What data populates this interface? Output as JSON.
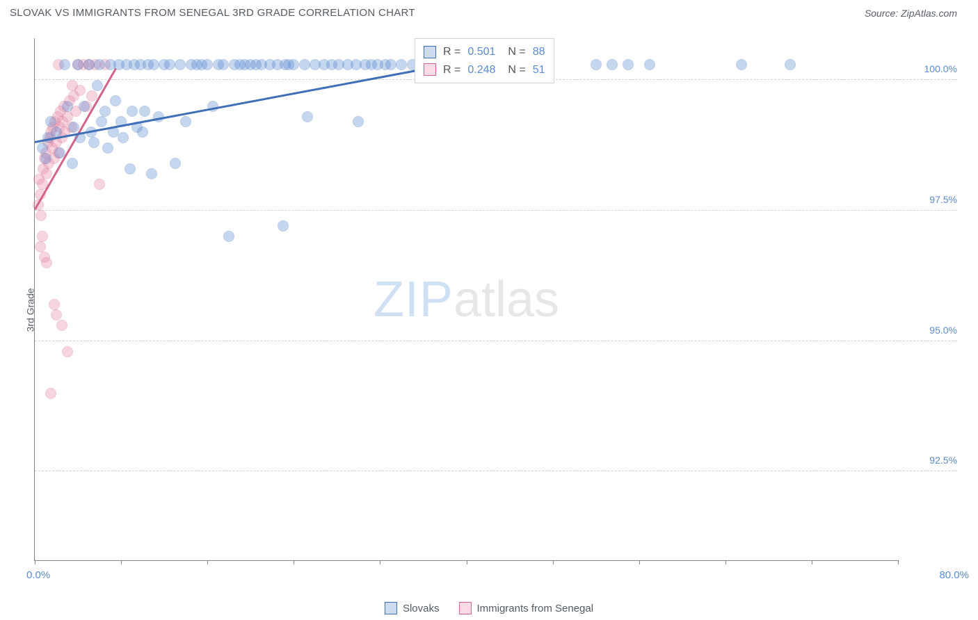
{
  "title": "SLOVAK VS IMMIGRANTS FROM SENEGAL 3RD GRADE CORRELATION CHART",
  "source": "Source: ZipAtlas.com",
  "ylabel": "3rd Grade",
  "watermark": {
    "zip": "ZIP",
    "atlas": "atlas"
  },
  "chart": {
    "type": "scatter",
    "background_color": "#ffffff",
    "grid_color": "#cfd3d8",
    "axis_color": "#808388",
    "text_color": "#5a5f66",
    "tick_label_color": "#5b8bd4",
    "marker_radius": 8,
    "marker_fill_opacity": 0.35,
    "xlim": [
      0,
      80
    ],
    "ylim": [
      90.8,
      100.8
    ],
    "x_min_label": "0.0%",
    "x_max_label": "80.0%",
    "xticks": [
      0,
      8,
      16,
      24,
      32,
      40,
      48,
      56,
      64,
      72,
      80
    ],
    "yticks": [
      {
        "v": 92.5,
        "label": "92.5%"
      },
      {
        "v": 95.0,
        "label": "95.0%"
      },
      {
        "v": 97.5,
        "label": "97.5%"
      },
      {
        "v": 100.0,
        "label": "100.0%"
      }
    ],
    "series": [
      {
        "name": "Slovaks",
        "fill": "#5b8bd4",
        "stroke": "#3f6fb8",
        "R": "0.501",
        "N": "88",
        "trend": {
          "x1": 0,
          "y1": 98.8,
          "x2": 40,
          "y2": 100.35
        },
        "points": [
          [
            0.7,
            98.7
          ],
          [
            1.2,
            98.9
          ],
          [
            1.0,
            98.5
          ],
          [
            1.5,
            99.2
          ],
          [
            2.0,
            99.0
          ],
          [
            2.3,
            98.6
          ],
          [
            2.8,
            100.3
          ],
          [
            3.0,
            99.5
          ],
          [
            3.5,
            98.4
          ],
          [
            3.6,
            99.1
          ],
          [
            4.0,
            100.3
          ],
          [
            4.2,
            98.9
          ],
          [
            4.6,
            99.5
          ],
          [
            5.0,
            100.3
          ],
          [
            5.2,
            99.0
          ],
          [
            5.5,
            98.8
          ],
          [
            5.8,
            99.9
          ],
          [
            6.0,
            100.3
          ],
          [
            6.2,
            99.2
          ],
          [
            6.5,
            99.4
          ],
          [
            6.8,
            98.7
          ],
          [
            7.0,
            100.3
          ],
          [
            7.3,
            99.0
          ],
          [
            7.5,
            99.6
          ],
          [
            7.8,
            100.3
          ],
          [
            8.0,
            99.2
          ],
          [
            8.2,
            98.9
          ],
          [
            8.5,
            100.3
          ],
          [
            8.8,
            98.3
          ],
          [
            9.0,
            99.4
          ],
          [
            9.2,
            100.3
          ],
          [
            9.5,
            99.1
          ],
          [
            9.8,
            100.3
          ],
          [
            10.0,
            99.0
          ],
          [
            10.5,
            100.3
          ],
          [
            10.2,
            99.4
          ],
          [
            10.8,
            98.2
          ],
          [
            11.0,
            100.3
          ],
          [
            11.5,
            99.3
          ],
          [
            12.0,
            100.3
          ],
          [
            12.5,
            100.3
          ],
          [
            13.0,
            98.4
          ],
          [
            13.5,
            100.3
          ],
          [
            14.0,
            99.2
          ],
          [
            14.5,
            100.3
          ],
          [
            15.0,
            100.3
          ],
          [
            15.5,
            100.3
          ],
          [
            16.0,
            100.3
          ],
          [
            16.5,
            99.5
          ],
          [
            17.0,
            100.3
          ],
          [
            17.5,
            100.3
          ],
          [
            18.0,
            97.0
          ],
          [
            18.5,
            100.3
          ],
          [
            19.0,
            100.3
          ],
          [
            19.5,
            100.3
          ],
          [
            20.0,
            100.3
          ],
          [
            20.5,
            100.3
          ],
          [
            21.0,
            100.3
          ],
          [
            21.8,
            100.3
          ],
          [
            22.5,
            100.3
          ],
          [
            23.2,
            100.3
          ],
          [
            23.0,
            97.2
          ],
          [
            24.0,
            100.3
          ],
          [
            25.0,
            100.3
          ],
          [
            25.3,
            99.3
          ],
          [
            26.0,
            100.3
          ],
          [
            26.8,
            100.3
          ],
          [
            27.5,
            100.3
          ],
          [
            28.2,
            100.3
          ],
          [
            29.0,
            100.3
          ],
          [
            29.8,
            100.3
          ],
          [
            30.6,
            100.3
          ],
          [
            31.2,
            100.3
          ],
          [
            31.8,
            100.3
          ],
          [
            32.5,
            100.3
          ],
          [
            33.0,
            100.3
          ],
          [
            30.0,
            99.2
          ],
          [
            34.0,
            100.3
          ],
          [
            35.0,
            100.3
          ],
          [
            36.5,
            100.3
          ],
          [
            38.0,
            100.3
          ],
          [
            52.0,
            100.3
          ],
          [
            53.5,
            100.3
          ],
          [
            55.0,
            100.3
          ],
          [
            57.0,
            100.3
          ],
          [
            65.5,
            100.3
          ],
          [
            70.0,
            100.3
          ],
          [
            23.5,
            100.3
          ]
        ]
      },
      {
        "name": "Immigrants from Senegal",
        "fill": "#e88aa4",
        "stroke": "#d26587",
        "R": "0.248",
        "N": "51",
        "trend": {
          "x1": 0,
          "y1": 97.5,
          "x2": 7.5,
          "y2": 100.2
        },
        "points": [
          [
            0.3,
            97.6
          ],
          [
            0.5,
            97.8
          ],
          [
            0.4,
            98.1
          ],
          [
            0.7,
            98.0
          ],
          [
            0.6,
            97.4
          ],
          [
            0.8,
            98.3
          ],
          [
            0.9,
            98.5
          ],
          [
            0.5,
            96.8
          ],
          [
            1.0,
            98.6
          ],
          [
            1.1,
            98.2
          ],
          [
            1.2,
            98.8
          ],
          [
            0.7,
            97.0
          ],
          [
            1.3,
            98.4
          ],
          [
            1.4,
            98.9
          ],
          [
            1.5,
            99.0
          ],
          [
            0.9,
            96.6
          ],
          [
            1.6,
            98.7
          ],
          [
            1.7,
            99.1
          ],
          [
            1.8,
            98.5
          ],
          [
            1.1,
            96.5
          ],
          [
            1.9,
            99.2
          ],
          [
            2.0,
            98.8
          ],
          [
            2.1,
            99.3
          ],
          [
            2.2,
            98.6
          ],
          [
            2.3,
            99.1
          ],
          [
            2.4,
            99.4
          ],
          [
            2.5,
            98.9
          ],
          [
            2.6,
            99.2
          ],
          [
            2.7,
            99.5
          ],
          [
            2.8,
            99.0
          ],
          [
            3.0,
            99.3
          ],
          [
            3.2,
            99.6
          ],
          [
            3.4,
            99.1
          ],
          [
            3.6,
            99.7
          ],
          [
            3.8,
            99.4
          ],
          [
            4.0,
            100.3
          ],
          [
            4.2,
            99.8
          ],
          [
            4.5,
            100.3
          ],
          [
            4.8,
            99.5
          ],
          [
            5.0,
            100.3
          ],
          [
            5.3,
            99.7
          ],
          [
            5.6,
            100.3
          ],
          [
            6.0,
            98.0
          ],
          [
            6.5,
            100.3
          ],
          [
            2.0,
            95.5
          ],
          [
            2.5,
            95.3
          ],
          [
            3.0,
            94.8
          ],
          [
            1.5,
            94.0
          ],
          [
            3.5,
            99.9
          ],
          [
            1.8,
            95.7
          ],
          [
            2.2,
            100.3
          ]
        ]
      }
    ],
    "legend_labels": [
      "Slovaks",
      "Immigrants from Senegal"
    ]
  }
}
